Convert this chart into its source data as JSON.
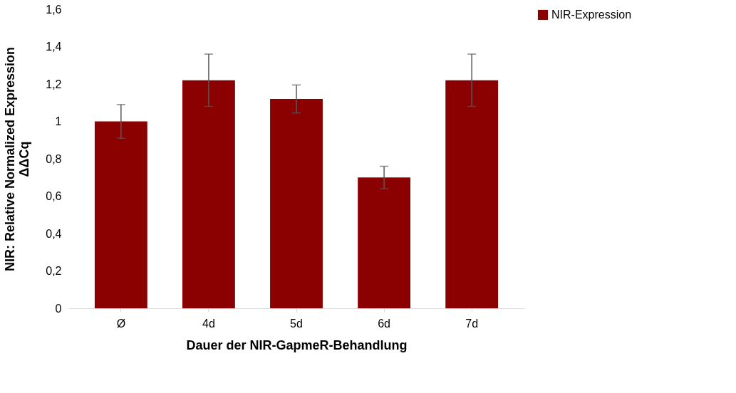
{
  "chart_data": {
    "type": "bar",
    "xlabel": "Dauer der NIR-GapmeR-Behandlung",
    "ylabel": "NIR: Relative Normalized Expression\nΔΔCq",
    "categories": [
      "Ø",
      "4d",
      "5d",
      "6d",
      "7d"
    ],
    "series": [
      {
        "name": "NIR-Expression",
        "color": "#8b0000",
        "values": [
          1.0,
          1.22,
          1.12,
          0.7,
          1.22
        ],
        "errors": [
          0.09,
          0.14,
          0.075,
          0.06,
          0.14
        ]
      }
    ],
    "ylim": [
      0,
      1.6
    ],
    "yticks": [
      0,
      {
        "value": 0.2,
        "label": "0,2"
      },
      {
        "value": 0.4,
        "label": "0,4"
      },
      {
        "value": 0.6,
        "label": "0,6"
      },
      {
        "value": 0.8,
        "label": "0,8"
      },
      1,
      {
        "value": 1.2,
        "label": "1,2"
      },
      {
        "value": 1.4,
        "label": "1,4"
      },
      {
        "value": 1.6,
        "label": "1,6"
      }
    ],
    "legend": "right",
    "grid": false
  }
}
